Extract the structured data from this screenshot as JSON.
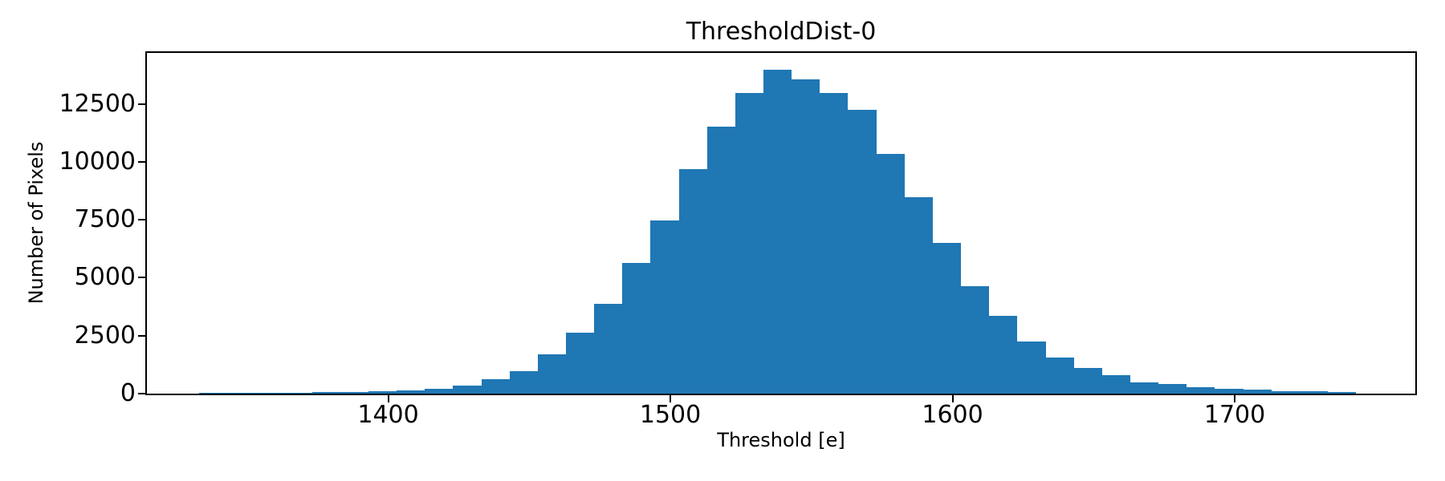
{
  "chart_data": {
    "type": "bar",
    "subtype": "histogram",
    "title": "ThresholdDist-0",
    "xlabel": "Threshold [e]",
    "ylabel": "Number of Pixels",
    "bar_color": "#1f77b4",
    "grid": false,
    "legend": false,
    "n_bins": 41,
    "bin_start": 1333,
    "bin_width": 10,
    "values": [
      45,
      45,
      45,
      50,
      60,
      80,
      90,
      140,
      220,
      345,
      610,
      980,
      1700,
      2640,
      3870,
      5640,
      7480,
      9690,
      11510,
      12960,
      13970,
      13550,
      12970,
      12250,
      10330,
      8460,
      6510,
      4640,
      3340,
      2240,
      1545,
      1105,
      790,
      470,
      415,
      285,
      195,
      185,
      105,
      95,
      85
    ],
    "xlim": [
      1314.5,
      1764.0
    ],
    "ylim": [
      0,
      14700
    ],
    "xticks": [
      1400,
      1500,
      1600,
      1700
    ],
    "yticks": [
      0,
      2500,
      5000,
      7500,
      10000,
      12500
    ]
  }
}
